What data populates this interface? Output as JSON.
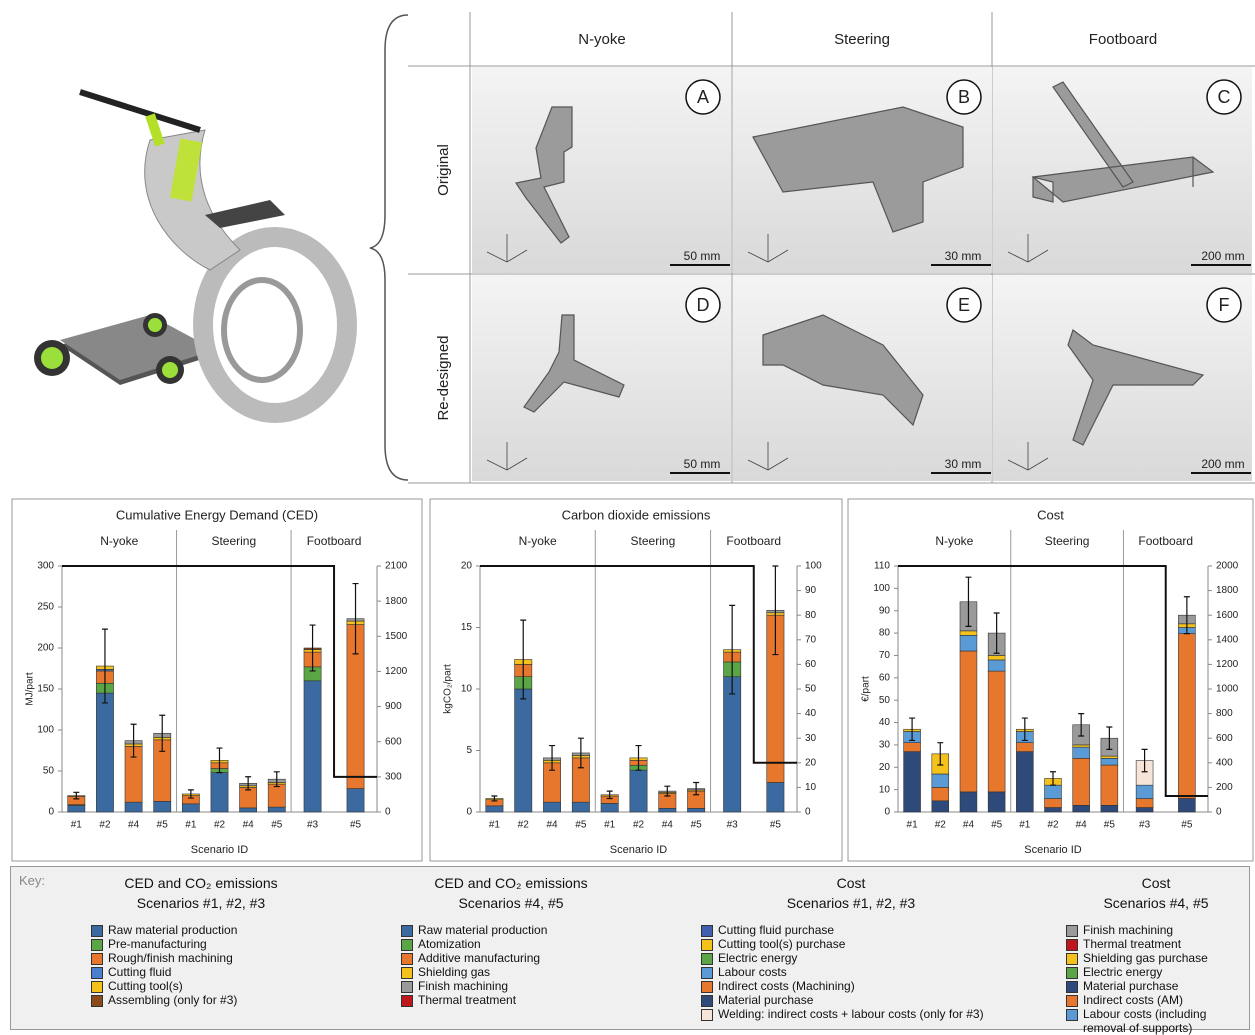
{
  "figure": {
    "columns": [
      "N-yoke",
      "Steering",
      "Footboard"
    ],
    "rows": [
      "Original",
      "Re-designed"
    ],
    "panels": [
      {
        "letter": "A",
        "scale": "50 mm"
      },
      {
        "letter": "B",
        "scale": "30 mm"
      },
      {
        "letter": "C",
        "scale": "200 mm"
      },
      {
        "letter": "D",
        "scale": "50 mm"
      },
      {
        "letter": "E",
        "scale": "30 mm"
      },
      {
        "letter": "F",
        "scale": "200 mm"
      }
    ]
  },
  "chart_data": [
    {
      "type": "bar",
      "stacked": true,
      "title": "Cumulative Energy Demand (CED)",
      "ylabel": "MJ/part",
      "xlabel": "Scenario ID",
      "groups": [
        "N-yoke",
        "Steering",
        "Footboard"
      ],
      "categories": [
        "#1",
        "#2",
        "#4",
        "#5",
        "#1",
        "#2",
        "#4",
        "#5",
        "#3",
        "#5"
      ],
      "category_groups": [
        0,
        0,
        0,
        0,
        1,
        1,
        1,
        1,
        2,
        2
      ],
      "bar_axis": [
        "y",
        "y",
        "y",
        "y",
        "y",
        "y",
        "y",
        "y",
        "y",
        "y2"
      ],
      "ylim": [
        0,
        300
      ],
      "yticks": [
        0,
        50,
        100,
        150,
        200,
        250,
        300
      ],
      "y2lim": [
        0,
        2100
      ],
      "y2ticks": [
        0,
        300,
        600,
        900,
        1200,
        1500,
        1800,
        2100
      ],
      "series": [
        {
          "color": "#3b6aa0",
          "values": [
            8,
            145,
            12,
            13,
            10,
            48,
            5,
            6,
            160,
            200
          ]
        },
        {
          "color": "#5aa545",
          "values": [
            1,
            12,
            0,
            0,
            0,
            5,
            0,
            0,
            17,
            0
          ]
        },
        {
          "color": "#e8772e",
          "values": [
            10,
            15,
            68,
            75,
            10,
            7,
            25,
            28,
            18,
            1400
          ]
        },
        {
          "color": "#4a7fd0",
          "values": [
            0,
            2,
            0,
            0,
            0,
            0,
            0,
            0,
            0,
            0
          ]
        },
        {
          "color": "#f5c21b",
          "values": [
            1,
            4,
            3,
            3,
            2,
            3,
            2,
            2,
            3,
            30
          ]
        },
        {
          "color": "#9a9a9a",
          "values": [
            0,
            0,
            4,
            5,
            0,
            0,
            3,
            4,
            0,
            20
          ]
        },
        {
          "color": "#8b4a1a",
          "values": [
            0,
            0,
            0,
            0,
            0,
            0,
            0,
            0,
            2,
            0
          ]
        }
      ],
      "errors": [
        4,
        45,
        20,
        22,
        5,
        15,
        8,
        9,
        28,
        300
      ],
      "step_line_y2": 300
    },
    {
      "type": "bar",
      "stacked": true,
      "title": "Carbon dioxide emissions",
      "ylabel": "kgCO₂/part",
      "xlabel": "Scenario ID",
      "groups": [
        "N-yoke",
        "Steering",
        "Footboard"
      ],
      "categories": [
        "#1",
        "#2",
        "#4",
        "#5",
        "#1",
        "#2",
        "#4",
        "#5",
        "#3",
        "#5"
      ],
      "category_groups": [
        0,
        0,
        0,
        0,
        1,
        1,
        1,
        1,
        2,
        2
      ],
      "bar_axis": [
        "y",
        "y",
        "y",
        "y",
        "y",
        "y",
        "y",
        "y",
        "y",
        "y2"
      ],
      "ylim": [
        0,
        20
      ],
      "yticks": [
        0,
        5,
        10,
        15,
        20
      ],
      "y2lim": [
        0,
        100
      ],
      "y2ticks": [
        0,
        10,
        20,
        30,
        40,
        50,
        60,
        70,
        80,
        90,
        100
      ],
      "series": [
        {
          "color": "#3b6aa0",
          "values": [
            0.5,
            10,
            0.8,
            0.8,
            0.7,
            3.4,
            0.3,
            0.3,
            11,
            12
          ]
        },
        {
          "color": "#5aa545",
          "values": [
            0,
            1,
            0,
            0,
            0,
            0.4,
            0,
            0,
            1.2,
            0
          ]
        },
        {
          "color": "#e8772e",
          "values": [
            0.5,
            1,
            3.2,
            3.6,
            0.6,
            0.4,
            1.2,
            1.4,
            0.8,
            68
          ]
        },
        {
          "color": "#f5c21b",
          "values": [
            0.1,
            0.4,
            0.2,
            0.2,
            0.1,
            0.2,
            0.1,
            0.1,
            0.2,
            1
          ]
        },
        {
          "color": "#9a9a9a",
          "values": [
            0,
            0,
            0.2,
            0.2,
            0,
            0,
            0.1,
            0.1,
            0,
            1
          ]
        }
      ],
      "errors": [
        0.2,
        3.2,
        1,
        1.2,
        0.3,
        1,
        0.4,
        0.5,
        3.6,
        18
      ],
      "step_line_y2": 20
    },
    {
      "type": "bar",
      "stacked": true,
      "title": "Cost",
      "ylabel": "€/part",
      "xlabel": "Scenario ID",
      "groups": [
        "N-yoke",
        "Steering",
        "Footboard"
      ],
      "categories": [
        "#1",
        "#2",
        "#4",
        "#5",
        "#1",
        "#2",
        "#4",
        "#5",
        "#3",
        "#5"
      ],
      "category_groups": [
        0,
        0,
        0,
        0,
        1,
        1,
        1,
        1,
        2,
        2
      ],
      "bar_axis": [
        "y",
        "y",
        "y",
        "y",
        "y",
        "y",
        "y",
        "y",
        "y",
        "y2"
      ],
      "ylim": [
        0,
        110
      ],
      "yticks": [
        0,
        10,
        20,
        30,
        40,
        50,
        60,
        70,
        80,
        90,
        100,
        110
      ],
      "y2lim": [
        0,
        2000
      ],
      "y2ticks": [
        0,
        200,
        400,
        600,
        800,
        1000,
        1200,
        1400,
        1600,
        1800,
        2000
      ],
      "series": [
        {
          "color": "#2e4a7a",
          "values": [
            27,
            5,
            9,
            9,
            27,
            2,
            3,
            3,
            2,
            110
          ]
        },
        {
          "color": "#e8772e",
          "values": [
            4,
            6,
            63,
            54,
            4,
            4,
            21,
            18,
            4,
            1340
          ]
        },
        {
          "color": "#5b9bd5",
          "values": [
            5,
            6,
            7,
            5,
            5,
            6,
            5,
            3,
            6,
            50
          ]
        },
        {
          "color": "#f5c21b",
          "values": [
            1,
            9,
            2,
            2,
            1,
            3,
            1,
            1,
            0,
            30
          ]
        },
        {
          "color": "#9a9a9a",
          "values": [
            0,
            0,
            13,
            10,
            0,
            0,
            9,
            8,
            0,
            70
          ]
        },
        {
          "color": "#f7e4d8",
          "values": [
            0,
            0,
            0,
            0,
            0,
            0,
            0,
            0,
            11,
            0
          ]
        }
      ],
      "errors": [
        5,
        5,
        11,
        9,
        5,
        3,
        5,
        5,
        5,
        150
      ],
      "step_line_y2": 130
    }
  ],
  "key": {
    "label": "Key:",
    "columns": [
      {
        "title": "CED and CO₂ emissions",
        "subtitle": "Scenarios #1, #2, #3",
        "items": [
          {
            "name": "Raw material production",
            "color": "#3b6aa0"
          },
          {
            "name": "Pre-manufacturing",
            "color": "#5aa545"
          },
          {
            "name": "Rough/finish machining",
            "color": "#e8772e"
          },
          {
            "name": "Cutting fluid",
            "color": "#4a7fd0"
          },
          {
            "name": "Cutting tool(s)",
            "color": "#f5c21b"
          },
          {
            "name": "Assembling (only for #3)",
            "color": "#8b4a1a"
          }
        ]
      },
      {
        "title": "CED and CO₂ emissions",
        "subtitle": "Scenarios #4, #5",
        "items": [
          {
            "name": "Raw material production",
            "color": "#3b6aa0"
          },
          {
            "name": "Atomization",
            "color": "#5aa545"
          },
          {
            "name": "Additive manufacturing",
            "color": "#e8772e"
          },
          {
            "name": "Shielding gas",
            "color": "#f5c21b"
          },
          {
            "name": "Finish machining",
            "color": "#9a9a9a"
          },
          {
            "name": "Thermal treatment",
            "color": "#c0171c"
          }
        ]
      },
      {
        "title": "Cost",
        "subtitle": "Scenarios #1, #2, #3",
        "items": [
          {
            "name": "Cutting fluid purchase",
            "color": "#3f5fb0"
          },
          {
            "name": "Cutting tool(s) purchase",
            "color": "#f5c21b"
          },
          {
            "name": "Electric energy",
            "color": "#5aa545"
          },
          {
            "name": "Labour costs",
            "color": "#5b9bd5"
          },
          {
            "name": "Indirect costs (Machining)",
            "color": "#e8772e"
          },
          {
            "name": "Material purchase",
            "color": "#2e4a7a"
          },
          {
            "name": "Welding: indirect costs + labour costs (only for #3)",
            "color": "#f7e4d8"
          }
        ]
      },
      {
        "title": "Cost",
        "subtitle": "Scenarios #4, #5",
        "items": [
          {
            "name": "Finish machining",
            "color": "#9a9a9a"
          },
          {
            "name": "Thermal treatment",
            "color": "#c0171c"
          },
          {
            "name": "Shielding gas purchase",
            "color": "#f5c21b"
          },
          {
            "name": "Electric energy",
            "color": "#5aa545"
          },
          {
            "name": "Material purchase",
            "color": "#2e4a7a"
          },
          {
            "name": "Indirect costs (AM)",
            "color": "#e8772e"
          },
          {
            "name": "Labour costs (including removal of supports)",
            "color": "#5b9bd5"
          }
        ]
      }
    ]
  }
}
